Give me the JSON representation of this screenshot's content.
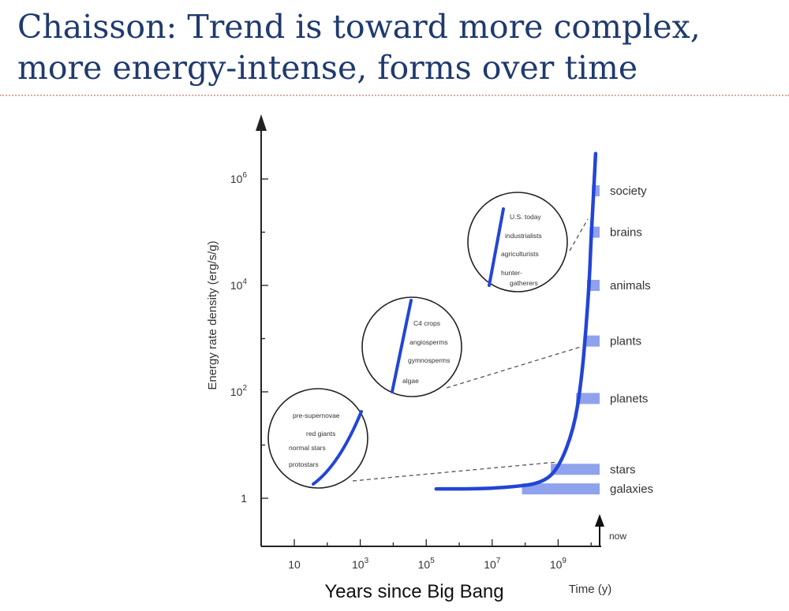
{
  "slide": {
    "title_line1": "Chaisson: Trend is toward more complex,",
    "title_line2": "more energy-intense, forms over time"
  },
  "colors": {
    "curve": "#2345d6",
    "bar": "#8fa2ec",
    "title": "#1f3a6e",
    "rule": "#e0a9a0"
  },
  "chart_data": {
    "type": "line",
    "title": "",
    "xlabel": "Years since Big Bang",
    "xlabel_secondary": "Time (y)",
    "ylabel": "Energy rate density (erg/s/g)",
    "x_scale": "log",
    "y_scale": "log",
    "x_ticks": [
      {
        "base": "10",
        "exp": ""
      },
      {
        "base": "10",
        "exp": "3"
      },
      {
        "base": "10",
        "exp": "5"
      },
      {
        "base": "10",
        "exp": "7"
      },
      {
        "base": "10",
        "exp": "9"
      }
    ],
    "y_ticks": [
      {
        "base": "1",
        "exp": ""
      },
      {
        "base": "10",
        "exp": "2"
      },
      {
        "base": "10",
        "exp": "4"
      },
      {
        "base": "10",
        "exp": "6"
      }
    ],
    "now_label": "now",
    "main_curve": {
      "x": [
        200000,
        3000000,
        30000000,
        300000000,
        1000000000,
        3000000000,
        5000000000,
        7000000000,
        9000000000,
        10000000000,
        12000000000,
        13700000000
      ],
      "y": [
        1.5,
        1.5,
        1.6,
        1.9,
        3.5,
        20,
        150,
        1500,
        15000,
        80000,
        600000,
        3000000
      ]
    },
    "levels": [
      {
        "name": "galaxies",
        "y": 1.5,
        "x_start": 80000000
      },
      {
        "name": "stars",
        "y": 3.5,
        "x_start": 600000000
      },
      {
        "name": "planets",
        "y": 75,
        "x_start": 3500000000
      },
      {
        "name": "plants",
        "y": 900,
        "x_start": 6000000000
      },
      {
        "name": "animals",
        "y": 10000,
        "x_start": 7500000000
      },
      {
        "name": "brains",
        "y": 100000,
        "x_start": 9000000000
      },
      {
        "name": "society",
        "y": 600000,
        "x_start": 10500000000
      }
    ],
    "insets": [
      {
        "name": "stellar",
        "labels": [
          "pre-supernovae",
          "red giants",
          "normal stars",
          "protostars"
        ]
      },
      {
        "name": "biological",
        "labels": [
          "C4 crops",
          "angiosperms",
          "gymnosperms",
          "algae"
        ]
      },
      {
        "name": "human",
        "labels": [
          "U.S. today",
          "industrialists",
          "agriculturists",
          "hunter-",
          "gatherers"
        ]
      }
    ]
  }
}
